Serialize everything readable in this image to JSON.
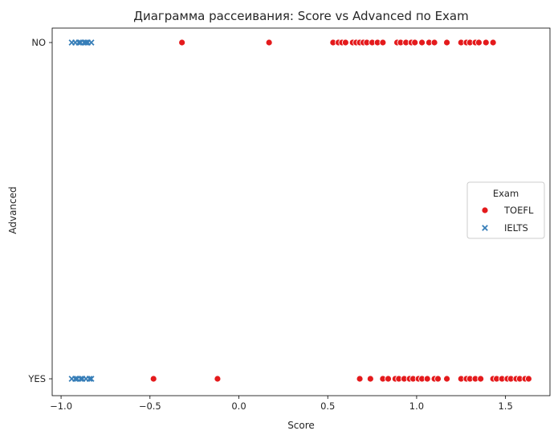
{
  "chart_data": {
    "type": "scatter",
    "title": "Диаграмма рассеивания: Score vs Advanced по Exam",
    "xlabel": "Score",
    "ylabel": "Advanced",
    "xlim": [
      -1.05,
      1.75
    ],
    "x_ticks": [
      -1.0,
      -0.5,
      0.0,
      0.5,
      1.0,
      1.5
    ],
    "x_tick_labels": [
      "−1.0",
      "−0.5",
      "0.0",
      "0.5",
      "1.0",
      "1.5"
    ],
    "y_categories": [
      "NO",
      "YES"
    ],
    "grid": false,
    "legend": {
      "title": "Exam",
      "placement": "center-right"
    },
    "series": [
      {
        "name": "TOEFL",
        "marker": "circle",
        "color": "#e41a1c",
        "points": {
          "NO": [
            -0.32,
            0.17,
            0.53,
            0.56,
            0.58,
            0.6,
            0.64,
            0.66,
            0.68,
            0.7,
            0.72,
            0.75,
            0.78,
            0.81,
            0.89,
            0.91,
            0.94,
            0.97,
            0.99,
            1.03,
            1.07,
            1.1,
            1.17,
            1.25,
            1.28,
            1.3,
            1.33,
            1.35,
            1.39,
            1.43
          ],
          "YES": [
            -0.48,
            -0.12,
            0.68,
            0.74,
            0.81,
            0.84,
            0.88,
            0.9,
            0.93,
            0.96,
            0.98,
            1.01,
            1.03,
            1.06,
            1.1,
            1.12,
            1.17,
            1.25,
            1.28,
            1.3,
            1.33,
            1.36,
            1.43,
            1.45,
            1.48,
            1.51,
            1.53,
            1.56,
            1.58,
            1.61,
            1.63
          ]
        }
      },
      {
        "name": "IELTS",
        "marker": "x",
        "color": "#377eb8",
        "points": {
          "NO": [
            -0.94,
            -0.92,
            -0.9,
            -0.89,
            -0.87,
            -0.86,
            -0.85,
            -0.83
          ],
          "YES": [
            -0.94,
            -0.92,
            -0.91,
            -0.89,
            -0.88,
            -0.86,
            -0.84,
            -0.83
          ]
        }
      }
    ]
  }
}
